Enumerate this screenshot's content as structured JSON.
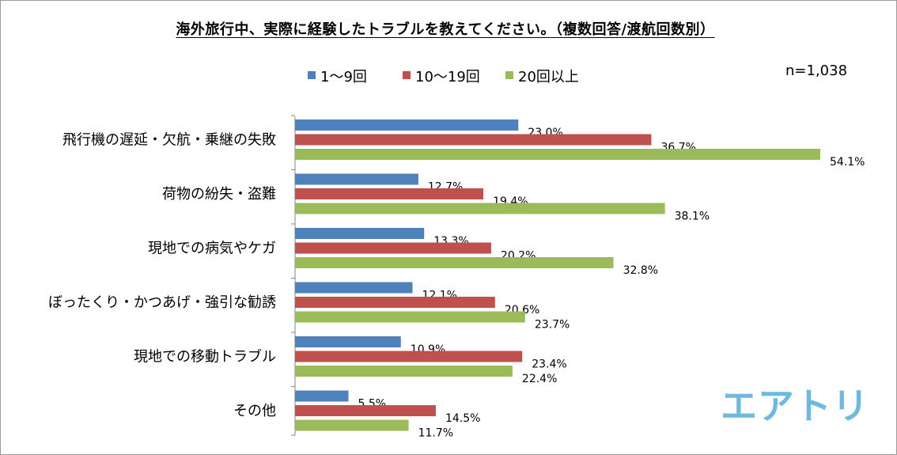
{
  "chart_data": {
    "type": "bar",
    "orientation": "horizontal",
    "title": "海外旅行中、実際に経験したトラブルを教えてください。（複数回答/渡航回数別）",
    "sample_size": "n=1,038",
    "categories": [
      "飛行機の遅延・欠航・乗継の失敗",
      "荷物の紛失・盗難",
      "現地での病気やケガ",
      "ぼったくり・かつあげ・強引な勧誘",
      "現地での移動トラブル",
      "その他"
    ],
    "series": [
      {
        "name": "1〜9回",
        "color": "#4f81bd",
        "values": [
          23.0,
          12.7,
          13.3,
          12.1,
          10.9,
          5.5
        ]
      },
      {
        "name": "10〜19回",
        "color": "#c0504d",
        "values": [
          36.7,
          19.4,
          20.2,
          20.6,
          23.4,
          14.5
        ]
      },
      {
        "name": "20回以上",
        "color": "#9bbb59",
        "values": [
          54.1,
          38.1,
          32.8,
          23.7,
          22.4,
          11.7
        ]
      }
    ],
    "value_suffix": "%",
    "legend_position": "top",
    "grid": false,
    "xlim": [
      0,
      55
    ]
  },
  "logo": {
    "text": "エアトリ",
    "color": "#6fb9df"
  }
}
